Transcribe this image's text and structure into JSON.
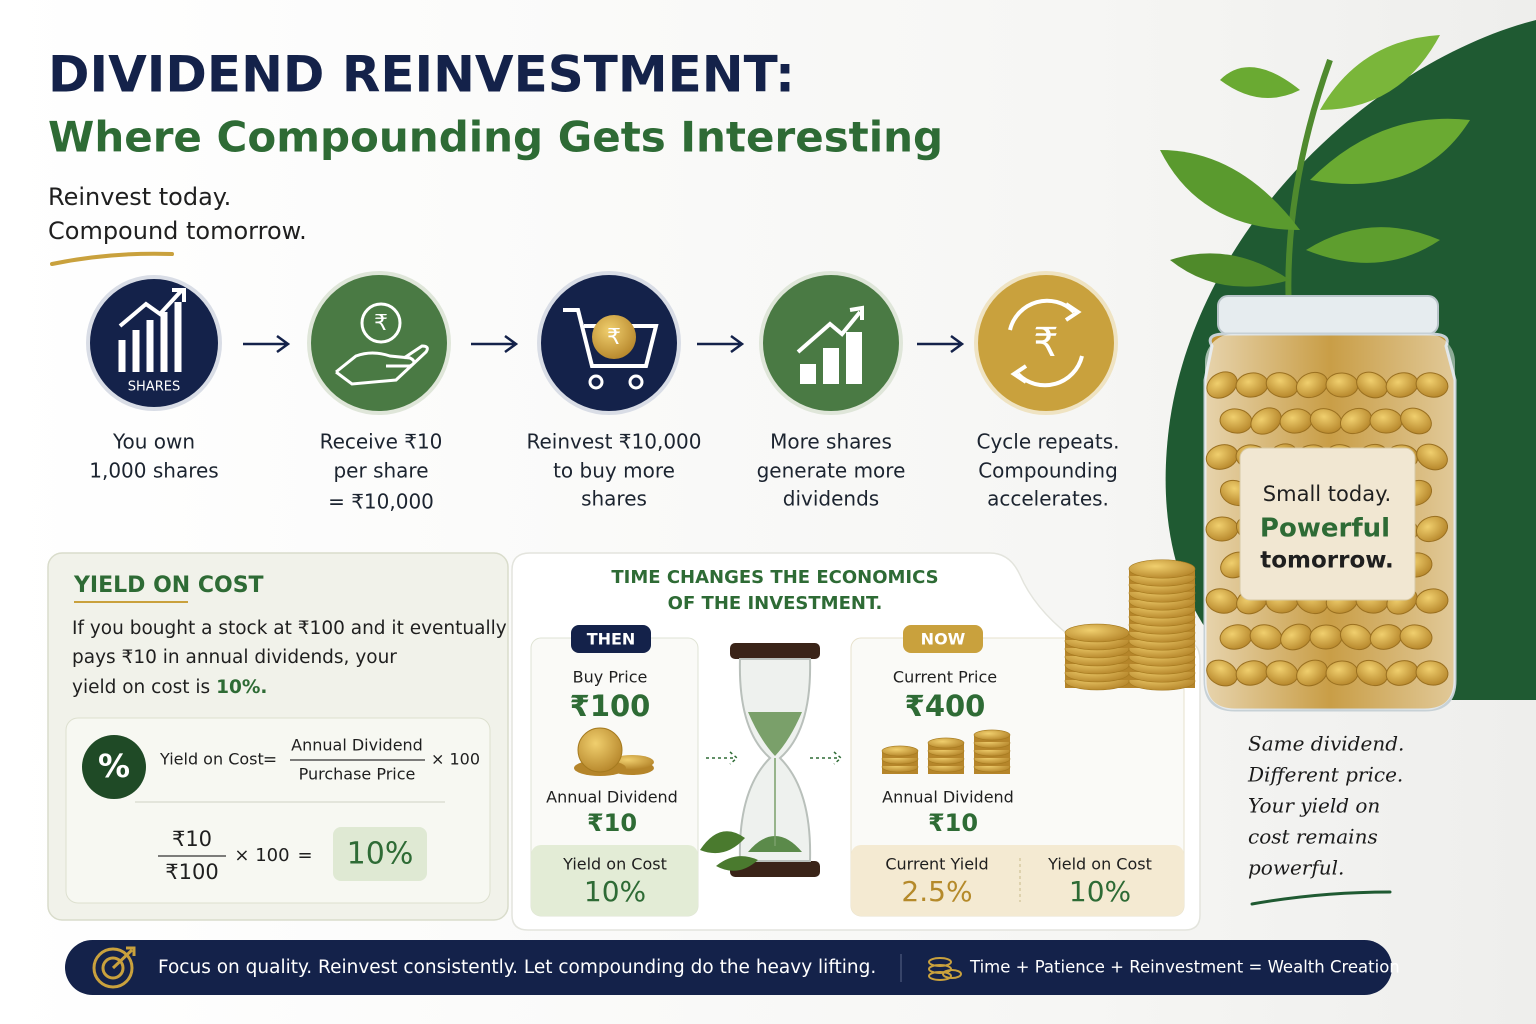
{
  "header": {
    "title": "DIVIDEND REINVESTMENT:",
    "subtitle": "Where Compounding Gets Interesting",
    "tagline": [
      "Reinvest today.",
      "Compound tomorrow."
    ]
  },
  "steps": [
    {
      "icon_label": "SHARES",
      "lines": [
        "You own",
        "1,000 shares"
      ]
    },
    {
      "icon_label": "₹",
      "lines": [
        "Receive ₹10",
        "per share",
        "= ₹10,000"
      ]
    },
    {
      "icon_label": "₹",
      "lines": [
        "Reinvest ₹10,000",
        "to buy more",
        "shares"
      ]
    },
    {
      "lines": [
        "More shares",
        "generate more",
        "dividends"
      ]
    },
    {
      "icon_label": "₹",
      "lines": [
        "Cycle repeats.",
        "Compounding",
        "accelerates."
      ]
    }
  ],
  "yield_on_cost": {
    "title": "YIELD ON COST",
    "text_lines": [
      "If you bought a stock at ₹100 and it eventually",
      "pays ₹10 in annual dividends, your"
    ],
    "text_end": "yield on cost is",
    "highlight": "10%.",
    "formula": {
      "symbol": "%",
      "lhs": "Yield on Cost",
      "eq": "=",
      "numerator": "Annual Dividend",
      "denominator": "Purchase Price",
      "multiplier": "× 100"
    },
    "example": {
      "numerator": "₹10",
      "denominator": "₹100",
      "multiplier": "× 100",
      "eq": "=",
      "result": "10%"
    }
  },
  "comparison": {
    "title_lines": [
      "TIME CHANGES THE ECONOMICS",
      "OF THE INVESTMENT."
    ],
    "then": {
      "badge": "THEN",
      "price_label": "Buy Price",
      "price": "₹100",
      "dividend_label": "Annual Dividend",
      "dividend": "₹10",
      "metrics": [
        {
          "label": "Yield on Cost",
          "value": "10%"
        }
      ]
    },
    "now": {
      "badge": "NOW",
      "price_label": "Current Price",
      "price": "₹400",
      "dividend_label": "Annual Dividend",
      "dividend": "₹10",
      "metrics": [
        {
          "label": "Current Yield",
          "value": "2.5%"
        },
        {
          "label": "Yield on Cost",
          "value": "10%"
        }
      ]
    }
  },
  "jar_label": [
    "Small today.",
    "Powerful",
    "tomorrow."
  ],
  "note": [
    "Same dividend.",
    "Different price.",
    "Your yield on",
    "cost remains",
    "powerful."
  ],
  "footer": {
    "message": "Focus on quality. Reinvest consistently. Let compounding do the heavy lifting.",
    "equation": "Time + Patience + Reinvestment = Wealth Creation"
  }
}
